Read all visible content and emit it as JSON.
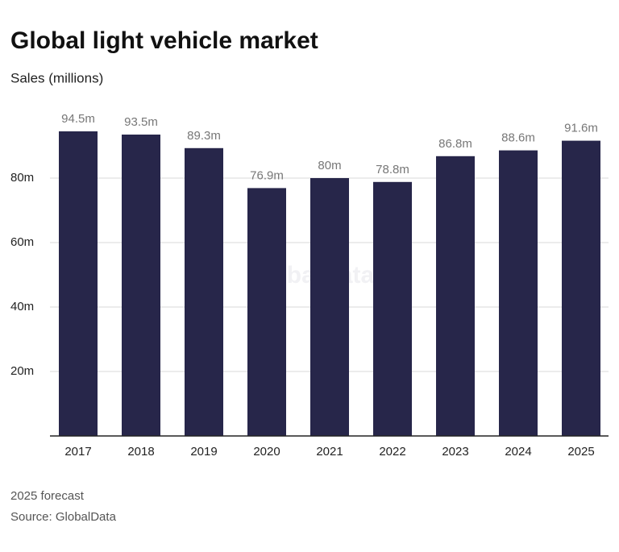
{
  "chart_data": {
    "type": "bar",
    "title": "Global light vehicle market",
    "subtitle": "Sales (millions)",
    "categories": [
      "2017",
      "2018",
      "2019",
      "2020",
      "2021",
      "2022",
      "2023",
      "2024",
      "2025"
    ],
    "values": [
      94.5,
      93.5,
      89.3,
      76.9,
      80,
      78.8,
      86.8,
      88.6,
      91.6
    ],
    "value_labels": [
      "94.5m",
      "93.5m",
      "89.3m",
      "76.9m",
      "80m",
      "78.8m",
      "86.8m",
      "88.6m",
      "91.6m"
    ],
    "color": "#27264a",
    "ylim": [
      0,
      100
    ],
    "yticks": [
      {
        "value": 20,
        "label": "20m"
      },
      {
        "value": 40,
        "label": "40m"
      },
      {
        "value": 60,
        "label": "60m"
      },
      {
        "value": 80,
        "label": "80m"
      }
    ],
    "grid": true,
    "watermark": "GlobalData",
    "notes": [
      "2025 forecast",
      "Source: GlobalData"
    ]
  }
}
